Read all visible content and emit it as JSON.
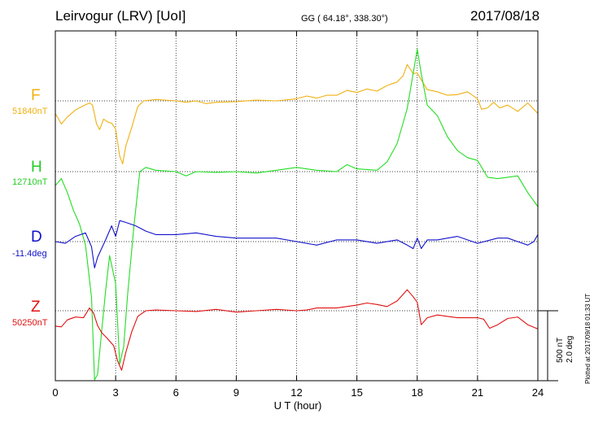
{
  "header": {
    "station": "Leirvogur (LRV)  [UoI]",
    "coords": "GG ( 64.18°, 338.30°)",
    "date": "2017/08/18"
  },
  "scale": {
    "nt": "500 nT",
    "deg": "2.0 deg"
  },
  "plotted_note": "Plotted at 2017/09/18 01:33 UT",
  "chart_data": {
    "type": "line",
    "xlabel": "U T (hour)",
    "xlim": [
      0,
      24
    ],
    "xticks": [
      0,
      3,
      6,
      9,
      12,
      15,
      18,
      21,
      24
    ],
    "grid": true,
    "colors": {
      "F": "#f0b010",
      "H": "#22dd22",
      "D": "#1111cc",
      "Z": "#e01010"
    },
    "channels": [
      {
        "name": "F",
        "baseline": "51840nT",
        "color": "#f0b010",
        "x": [
          0,
          0.3,
          0.6,
          1.0,
          1.4,
          1.7,
          1.85,
          2.05,
          2.2,
          2.4,
          2.6,
          2.8,
          3.0,
          3.2,
          3.35,
          3.5,
          3.8,
          4.1,
          4.4,
          5.0,
          6.0,
          6.5,
          7.0,
          7.5,
          8.0,
          9.0,
          10.0,
          11.0,
          12.0,
          12.5,
          13.0,
          13.5,
          14.0,
          14.5,
          15.0,
          15.5,
          16.0,
          16.5,
          17.0,
          17.3,
          17.5,
          17.8,
          18.0,
          18.2,
          18.5,
          19.0,
          19.5,
          20.0,
          20.5,
          21.0,
          21.2,
          21.5,
          21.8,
          22.1,
          22.5,
          23.0,
          23.5,
          24.0
        ],
        "y": [
          -180,
          -330,
          -230,
          -130,
          -70,
          -30,
          -60,
          -330,
          -410,
          -260,
          -300,
          -320,
          -400,
          -790,
          -900,
          -650,
          -380,
          -80,
          0,
          20,
          0,
          -20,
          0,
          -40,
          -20,
          -10,
          10,
          0,
          30,
          70,
          40,
          80,
          80,
          150,
          120,
          170,
          140,
          220,
          270,
          360,
          520,
          390,
          400,
          300,
          160,
          130,
          80,
          90,
          130,
          30,
          -120,
          -100,
          -20,
          -100,
          -60,
          -150,
          -30,
          -180
        ]
      },
      {
        "name": "H",
        "baseline": "12710nT",
        "color": "#22dd22",
        "x": [
          0,
          0.3,
          0.6,
          0.9,
          1.2,
          1.5,
          1.8,
          1.95,
          2.1,
          2.3,
          2.5,
          2.7,
          3.0,
          3.2,
          3.4,
          3.6,
          3.9,
          4.2,
          4.5,
          5.0,
          6.0,
          6.5,
          7.0,
          8.0,
          9.0,
          10.0,
          11.0,
          12.0,
          13.0,
          14.0,
          14.5,
          15.0,
          16.0,
          16.5,
          17.0,
          17.5,
          18.0,
          18.2,
          18.5,
          19.0,
          19.5,
          20.0,
          20.5,
          21.0,
          21.5,
          22.0,
          22.5,
          23.0,
          23.5,
          24.0
        ],
        "y": [
          -200,
          -100,
          -300,
          -550,
          -750,
          -1050,
          -1800,
          -3800,
          -2900,
          -2300,
          -1700,
          -1200,
          -1600,
          -2750,
          -2500,
          -1750,
          -800,
          0,
          60,
          20,
          0,
          -60,
          0,
          -10,
          0,
          -20,
          20,
          60,
          20,
          0,
          100,
          40,
          20,
          140,
          400,
          900,
          1750,
          1400,
          950,
          800,
          500,
          300,
          200,
          160,
          -80,
          -100,
          -80,
          -60,
          -300,
          -500
        ]
      },
      {
        "name": "D",
        "baseline": "-11.4deg",
        "color": "#1111cc",
        "x": [
          0,
          0.5,
          1.0,
          1.5,
          1.8,
          1.95,
          2.1,
          2.3,
          2.5,
          2.8,
          3.0,
          3.2,
          3.5,
          4.0,
          4.5,
          5.0,
          6.0,
          7.0,
          8.0,
          9.0,
          10.0,
          11.0,
          12.0,
          13.0,
          14.0,
          15.0,
          16.0,
          17.0,
          17.5,
          17.8,
          18.0,
          18.2,
          18.5,
          19.0,
          20.0,
          21.0,
          22.0,
          22.5,
          23.0,
          23.5,
          23.8,
          24.0
        ],
        "y": [
          0,
          -0.05,
          0.15,
          0.25,
          -0.15,
          -0.75,
          -0.45,
          -0.2,
          0.05,
          0.45,
          0.15,
          0.6,
          0.55,
          0.45,
          0.3,
          0.2,
          0.2,
          0.25,
          0.15,
          0.1,
          0.1,
          0.1,
          0.0,
          -0.1,
          0.05,
          0.05,
          -0.05,
          0.05,
          -0.1,
          -0.2,
          0.1,
          -0.2,
          0.05,
          0.05,
          0.15,
          -0.05,
          0.1,
          0.1,
          0.0,
          -0.1,
          0.0,
          0.2
        ]
      },
      {
        "name": "Z",
        "baseline": "50250nT",
        "color": "#e01010",
        "x": [
          0,
          0.3,
          0.6,
          1.0,
          1.4,
          1.7,
          1.9,
          2.1,
          2.3,
          2.6,
          2.9,
          3.1,
          3.3,
          3.5,
          3.8,
          4.1,
          4.5,
          5.0,
          6.0,
          7.0,
          8.0,
          9.0,
          10.0,
          11.0,
          12.0,
          12.5,
          13.0,
          14.0,
          15.0,
          15.5,
          16.0,
          16.5,
          17.0,
          17.5,
          17.8,
          18.0,
          18.2,
          18.5,
          19.0,
          19.5,
          20.0,
          21.0,
          21.3,
          21.6,
          22.0,
          22.5,
          23.0,
          23.5,
          24.0
        ],
        "y": [
          -220,
          -230,
          -130,
          -90,
          -100,
          40,
          -30,
          -210,
          -310,
          -400,
          -500,
          -720,
          -850,
          -600,
          -300,
          -80,
          0,
          10,
          0,
          -10,
          20,
          -20,
          0,
          20,
          0,
          10,
          40,
          40,
          80,
          110,
          90,
          60,
          140,
          300,
          200,
          120,
          -200,
          -100,
          -60,
          -80,
          -100,
          -100,
          -120,
          -250,
          -200,
          -110,
          -90,
          -200,
          -260
        ]
      }
    ]
  }
}
